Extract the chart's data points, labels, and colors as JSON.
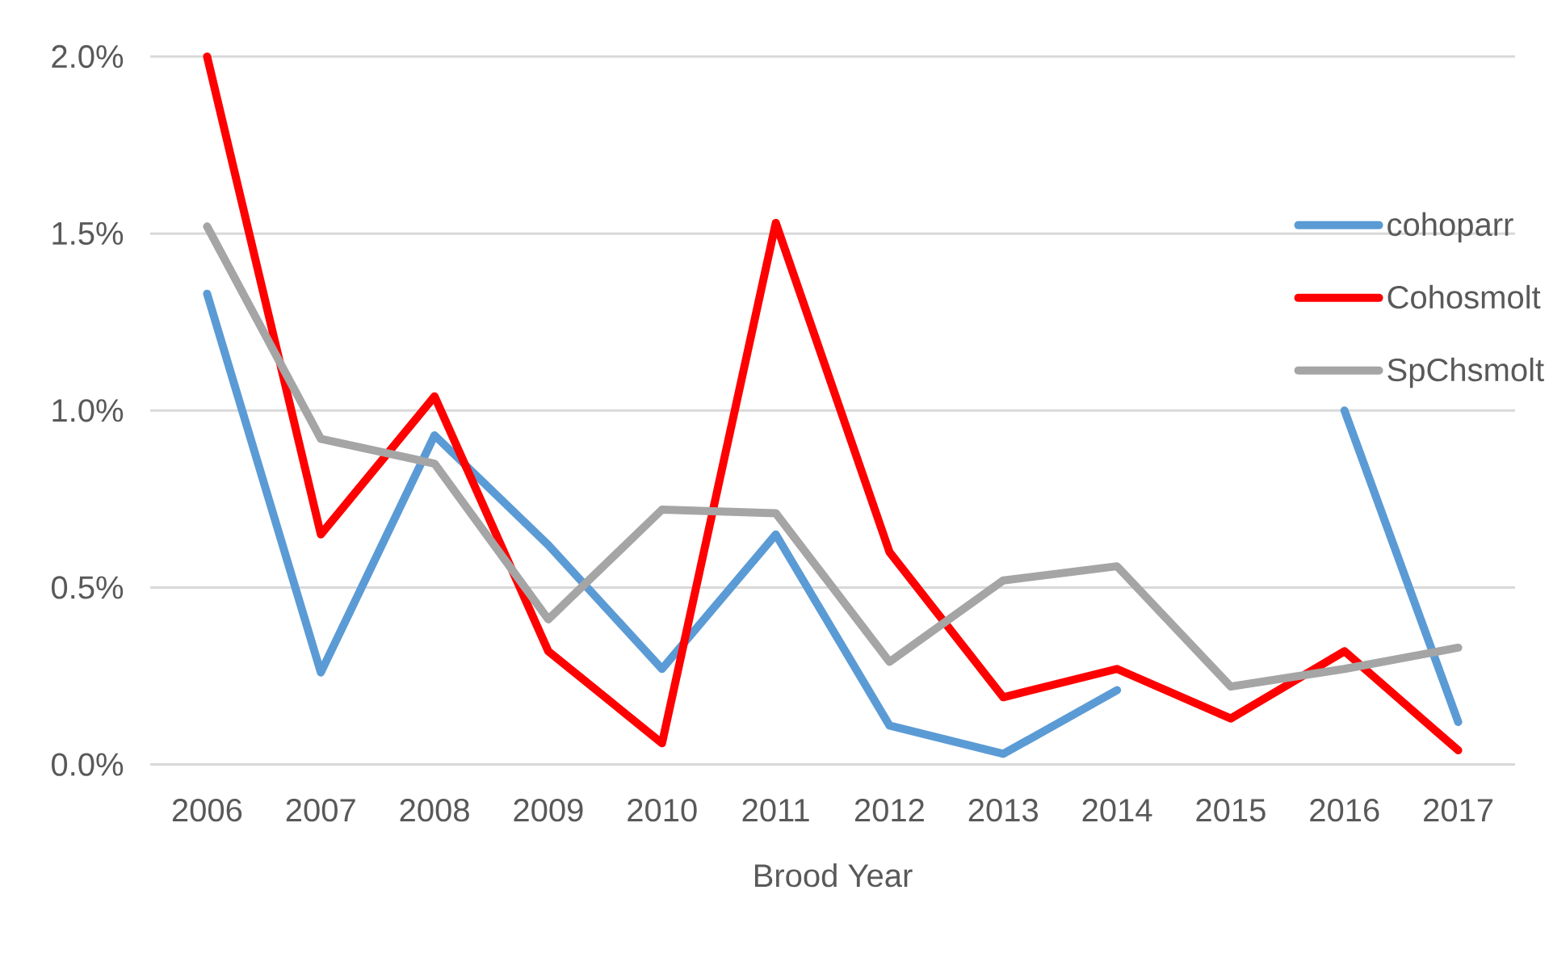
{
  "chart_data": {
    "type": "line",
    "xlabel": "Brood Year",
    "categories": [
      "2006",
      "2007",
      "2008",
      "2009",
      "2010",
      "2011",
      "2012",
      "2013",
      "2014",
      "2015",
      "2016",
      "2017"
    ],
    "series": [
      {
        "name": "cohoparr",
        "color": "#5b9bd5",
        "values": [
          1.33,
          0.26,
          0.93,
          0.62,
          0.27,
          0.65,
          0.11,
          0.03,
          0.21,
          null,
          1.0,
          0.12
        ]
      },
      {
        "name": "Cohosmolt",
        "color": "#ff0000",
        "values": [
          2.0,
          0.65,
          1.04,
          0.32,
          0.06,
          1.53,
          0.6,
          0.19,
          0.27,
          0.13,
          0.32,
          0.04
        ]
      },
      {
        "name": "SpChsmolt",
        "color": "#a5a5a5",
        "values": [
          1.52,
          0.92,
          0.85,
          0.41,
          0.72,
          0.71,
          0.29,
          0.52,
          0.56,
          0.22,
          0.27,
          0.33
        ]
      }
    ],
    "ylim": [
      0,
      2.0
    ],
    "yticks": [
      {
        "value": 0,
        "label": "0.0%"
      },
      {
        "value": 0.5,
        "label": "0.5%"
      },
      {
        "value": 1.0,
        "label": "1.0%"
      },
      {
        "value": 1.5,
        "label": "1.5%"
      },
      {
        "value": 2.0,
        "label": "2.0%"
      }
    ],
    "grid": "y",
    "legend": "right",
    "marker": "none",
    "line_style": "solid"
  }
}
